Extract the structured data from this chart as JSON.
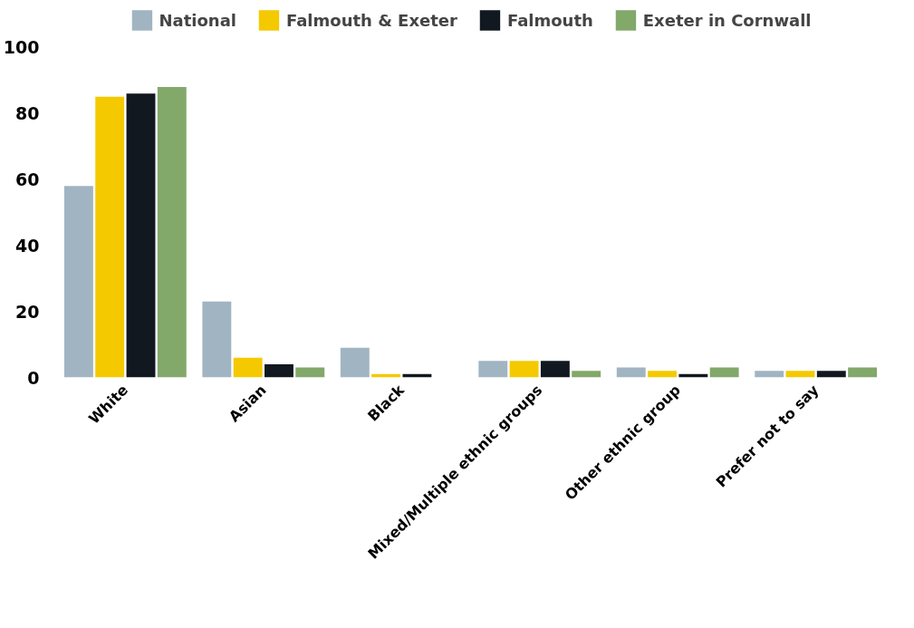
{
  "chart_data": {
    "type": "bar",
    "categories": [
      "White",
      "Asian",
      "Black",
      "Mixed/Multiple ethnic groups",
      "Other ethnic group",
      "Prefer not to say"
    ],
    "series": [
      {
        "name": "National",
        "color": "#a0b4c2",
        "values": [
          58,
          23,
          9,
          5,
          3,
          2
        ]
      },
      {
        "name": "Falmouth & Exeter",
        "color": "#f5c900",
        "values": [
          85,
          6,
          1,
          5,
          2,
          2
        ]
      },
      {
        "name": "Falmouth",
        "color": "#121820",
        "values": [
          86,
          4,
          1,
          5,
          1,
          2
        ]
      },
      {
        "name": "Exeter in Cornwall",
        "color": "#82a86a",
        "values": [
          88,
          3,
          0,
          2,
          3,
          3
        ]
      }
    ],
    "ylim": [
      0,
      112
    ],
    "yticks": [
      0,
      20,
      40,
      60,
      80,
      100
    ],
    "grid": false,
    "legend": "top"
  }
}
